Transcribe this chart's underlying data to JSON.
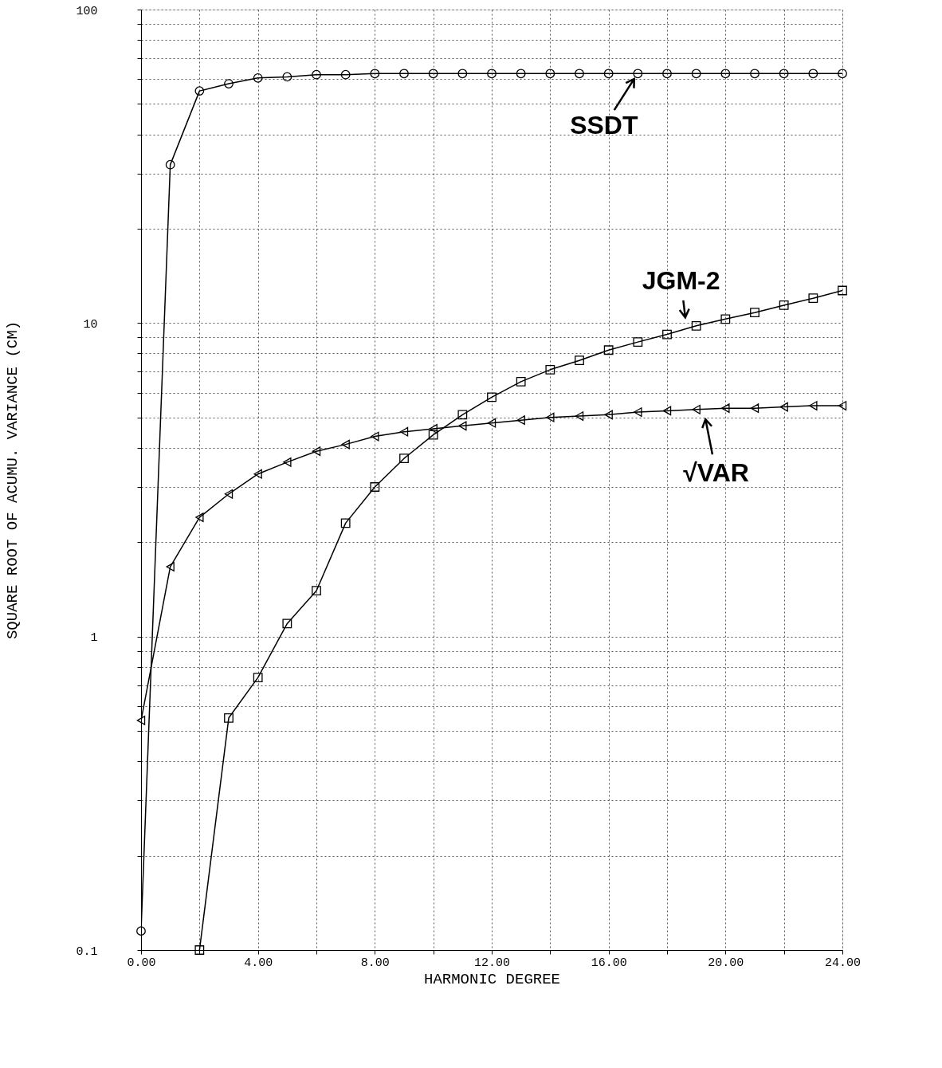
{
  "chart_data": {
    "type": "line",
    "xlabel": "HARMONIC DEGREE",
    "ylabel": "SQUARE ROOT OF ACUMU. VARIANCE (CM)",
    "x": [
      0,
      1,
      2,
      3,
      4,
      5,
      6,
      7,
      8,
      9,
      10,
      11,
      12,
      13,
      14,
      15,
      16,
      17,
      18,
      19,
      20,
      21,
      22,
      23,
      24
    ],
    "series": [
      {
        "color": "#000000",
        "marker": "circle",
        "values": [
          0.115,
          32,
          55,
          58,
          60.5,
          61,
          62,
          62,
          62.5,
          62.5,
          62.5,
          62.5,
          62.5,
          62.5,
          62.5,
          62.5,
          62.5,
          62.5,
          62.5,
          62.5,
          62.5,
          62.5,
          62.5,
          62.5,
          62.5
        ]
      },
      {
        "color": "#000000",
        "marker": "square",
        "values": [
          null,
          null,
          0.1,
          0.55,
          0.74,
          1.1,
          1.4,
          2.3,
          3.0,
          3.7,
          4.4,
          5.1,
          5.8,
          6.5,
          7.1,
          7.6,
          8.2,
          8.7,
          9.2,
          9.8,
          10.3,
          10.8,
          11.4,
          12.0,
          12.7
        ]
      },
      {
        "color": "#000000",
        "marker": "triangle",
        "values": [
          0.54,
          1.67,
          2.4,
          2.85,
          3.3,
          3.6,
          3.9,
          4.1,
          4.35,
          4.5,
          4.6,
          4.7,
          4.8,
          4.9,
          5.0,
          5.05,
          5.1,
          5.2,
          5.25,
          5.3,
          5.35,
          5.35,
          5.4,
          5.45,
          5.45
        ]
      }
    ],
    "log": "y",
    "grid": true,
    "line_style": "solid",
    "xlim": [
      0,
      24
    ],
    "ylim": [
      0.1,
      100
    ],
    "xticks": [
      {
        "value": 0,
        "label": "0.00"
      },
      {
        "value": 2,
        "label": null
      },
      {
        "value": 4,
        "label": "4.00"
      },
      {
        "value": 6,
        "label": null
      },
      {
        "value": 8,
        "label": "8.00"
      },
      {
        "value": 10,
        "label": null
      },
      {
        "value": 12,
        "label": "12.00"
      },
      {
        "value": 14,
        "label": null
      },
      {
        "value": 16,
        "label": "16.00"
      },
      {
        "value": 18,
        "label": null
      },
      {
        "value": 20,
        "label": "20.00"
      },
      {
        "value": 22,
        "label": null
      },
      {
        "value": 24,
        "label": "24.00"
      }
    ],
    "yticks": [
      0.1,
      {
        "value": 0.2,
        "label": null
      },
      {
        "value": 0.3,
        "label": null
      },
      {
        "value": 0.4,
        "label": null
      },
      {
        "value": 0.5,
        "label": null
      },
      {
        "value": 0.6,
        "label": null
      },
      {
        "value": 0.7,
        "label": null
      },
      {
        "value": 0.8,
        "label": null
      },
      {
        "value": 0.9,
        "label": null
      },
      1,
      {
        "value": 2,
        "label": null
      },
      {
        "value": 3,
        "label": null
      },
      {
        "value": 4,
        "label": null
      },
      {
        "value": 5,
        "label": null
      },
      {
        "value": 6,
        "label": null
      },
      {
        "value": 7,
        "label": null
      },
      {
        "value": 8,
        "label": null
      },
      {
        "value": 9,
        "label": null
      },
      10,
      {
        "value": 20,
        "label": null
      },
      {
        "value": 30,
        "label": null
      },
      {
        "value": 40,
        "label": null
      },
      {
        "value": 50,
        "label": null
      },
      {
        "value": 60,
        "label": null
      },
      {
        "value": 70,
        "label": null
      },
      {
        "value": 80,
        "label": null
      },
      {
        "value": 90,
        "label": null
      },
      100
    ],
    "annotations": [
      "SSDT",
      "JGM-2",
      "√VAR"
    ]
  }
}
